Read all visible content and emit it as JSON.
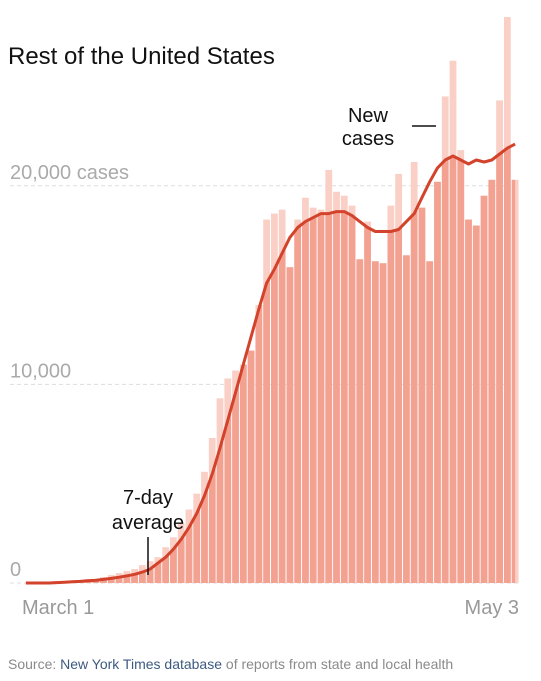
{
  "chart_data": {
    "type": "bar-line",
    "title": "Rest of the United States",
    "categories": [
      "March 1",
      null,
      null,
      null,
      null,
      null,
      null,
      null,
      null,
      null,
      null,
      null,
      null,
      null,
      null,
      null,
      null,
      null,
      null,
      null,
      null,
      null,
      null,
      null,
      null,
      null,
      null,
      null,
      null,
      null,
      null,
      null,
      null,
      null,
      null,
      null,
      null,
      null,
      null,
      null,
      null,
      null,
      null,
      null,
      null,
      null,
      null,
      null,
      null,
      null,
      null,
      null,
      null,
      null,
      null,
      null,
      null,
      null,
      null,
      null,
      null,
      null,
      null,
      "May 3"
    ],
    "series": [
      {
        "color": "#f9cfc6",
        "values": [
          0,
          0,
          0,
          50,
          100,
          100,
          100,
          150,
          200,
          200,
          300,
          400,
          500,
          600,
          700,
          900,
          1100,
          1300,
          1800,
          2300,
          3000,
          3700,
          4500,
          5600,
          7300,
          9300,
          10300,
          10700,
          11000,
          11700,
          14000,
          18300,
          18600,
          18800,
          15900,
          18300,
          19400,
          18900,
          18800,
          20800,
          19700,
          19500,
          19000,
          16300,
          18200,
          16200,
          16100,
          19000,
          20600,
          16500,
          21200,
          18900,
          16200,
          20200,
          24500,
          26300,
          21800,
          18300,
          18000,
          19500,
          20300,
          24300,
          28500,
          20300
        ]
      },
      {
        "color": "#d3432c",
        "fill": "#f3a292",
        "values": [
          0,
          0,
          0,
          0,
          20,
          40,
          60,
          80,
          110,
          140,
          180,
          230,
          290,
          360,
          440,
          550,
          700,
          1000,
          1300,
          1700,
          2200,
          2800,
          3500,
          4400,
          5500,
          6800,
          8200,
          9600,
          11000,
          12400,
          13800,
          15100,
          15800,
          16600,
          17400,
          17900,
          18200,
          18400,
          18600,
          18600,
          18700,
          18700,
          18500,
          18200,
          17900,
          17700,
          17700,
          17700,
          17800,
          18200,
          18600,
          19400,
          20200,
          20900,
          21300,
          21500,
          21300,
          21100,
          21300,
          21200,
          21300,
          21600,
          21900,
          22100
        ]
      }
    ],
    "ylim": [
      0,
      28500
    ],
    "yticks": [
      0,
      {
        "value": 10000,
        "label": "10,000"
      },
      {
        "value": 20000,
        "label": "20,000 cases"
      }
    ],
    "grid": true,
    "annotations": [
      [
        "New",
        "cases"
      ],
      [
        "7-day",
        "average"
      ]
    ],
    "source": {
      "prefix": "Source: ",
      "link": "New York Times database",
      "suffix": " of reports from state and local health"
    }
  }
}
